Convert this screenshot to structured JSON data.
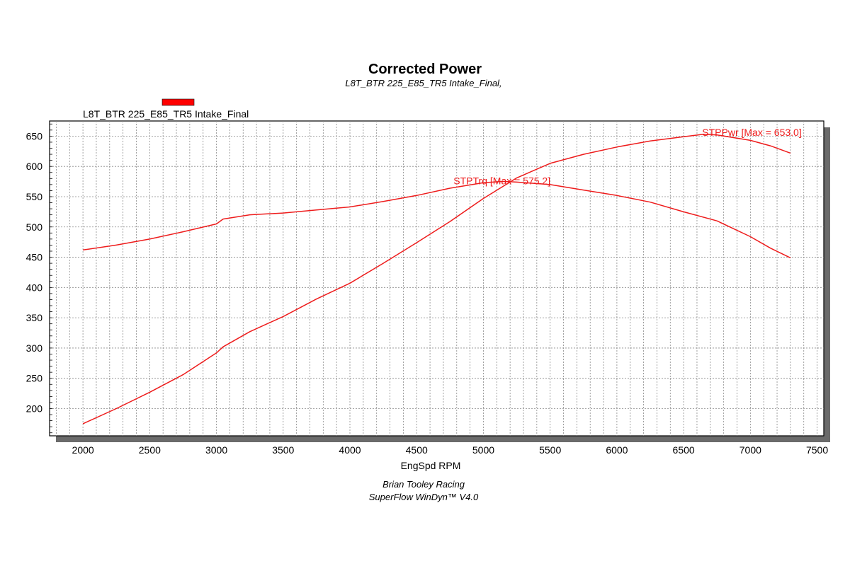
{
  "chart_data": {
    "type": "line",
    "title": "Corrected Power",
    "subtitle": "L8T_BTR 225_E85_TR5 Intake_Final,",
    "xlabel": "EngSpd RPM",
    "ylabel": "",
    "xlim": [
      1750,
      7550
    ],
    "ylim": [
      155,
      675
    ],
    "x_ticks": [
      2000,
      2500,
      3000,
      3500,
      4000,
      4500,
      5000,
      5500,
      6000,
      6500,
      7000,
      7500
    ],
    "y_ticks": [
      200,
      250,
      300,
      350,
      400,
      450,
      500,
      550,
      600,
      650
    ],
    "grid": true,
    "legend": {
      "placement": "top-left",
      "entries": [
        {
          "name": "L8T_BTR 225_E85_TR5 Intake_Final",
          "color": "#ff0000"
        }
      ]
    },
    "series": [
      {
        "name": "STPPwr",
        "color": "#ee1c1c",
        "x": [
          2000,
          2250,
          2500,
          2750,
          3000,
          3050,
          3250,
          3500,
          3750,
          4000,
          4250,
          4500,
          4750,
          5000,
          5250,
          5500,
          5750,
          6000,
          6250,
          6500,
          6650,
          6750,
          7000,
          7150,
          7300
        ],
        "values": [
          175,
          200,
          227,
          256,
          292,
          302,
          327,
          352,
          381,
          407,
          440,
          474,
          509,
          547,
          581,
          605,
          620,
          632,
          642,
          649,
          653,
          652,
          643,
          634,
          622
        ]
      },
      {
        "name": "STPTrq",
        "color": "#ee1c1c",
        "x": [
          2000,
          2250,
          2500,
          2750,
          3000,
          3050,
          3250,
          3500,
          3750,
          4000,
          4250,
          4500,
          4750,
          5000,
          5150,
          5250,
          5500,
          5750,
          6000,
          6250,
          6500,
          6750,
          7000,
          7150,
          7300
        ],
        "values": [
          462,
          470,
          480,
          492,
          505,
          513,
          520,
          523,
          528,
          533,
          542,
          552,
          564,
          573,
          575.2,
          574,
          570,
          561,
          552,
          541,
          525,
          510,
          484,
          465,
          449
        ]
      }
    ],
    "annotations": [
      {
        "text": "STPPwr [Max = 653.0]",
        "x": 6660,
        "y": 653
      },
      {
        "text": "STPTrq [Max = 575.2]",
        "x": 5150,
        "y": 575.2
      }
    ]
  },
  "footer": {
    "line1": "Brian Tooley Racing",
    "line2": "SuperFlow WinDyn™ V4.0"
  }
}
